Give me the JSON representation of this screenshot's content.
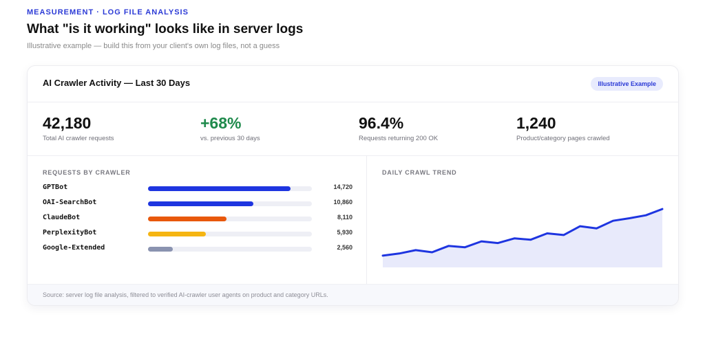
{
  "eyebrow": "MEASUREMENT · LOG FILE ANALYSIS",
  "title": "What \"is it working\" looks like in server logs",
  "subtitle": "Illustrative example — build this from your client's own log files, not a guess",
  "card": {
    "title": "AI Crawler Activity — Last 30 Days",
    "badge": "Illustrative Example",
    "stats": [
      {
        "value": "42,180",
        "label": "Total AI crawler requests"
      },
      {
        "value": "+68%",
        "label": "vs. previous 30 days"
      },
      {
        "value": "96.4%",
        "label": "Requests returning 200 OK"
      },
      {
        "value": "1,240",
        "label": "Product/category pages crawled"
      }
    ],
    "crawlers_heading": "REQUESTS BY CRAWLER",
    "crawlers": [
      {
        "name": "GPTBot",
        "value": 14720,
        "display": "14,720",
        "color": "#1e35e0"
      },
      {
        "name": "OAI-SearchBot",
        "value": 10860,
        "display": "10,860",
        "color": "#1e35e0"
      },
      {
        "name": "ClaudeBot",
        "value": 8110,
        "display": "8,110",
        "color": "#e8580c"
      },
      {
        "name": "PerplexityBot",
        "value": 5930,
        "display": "5,930",
        "color": "#f5b512"
      },
      {
        "name": "Google-Extended",
        "value": 2560,
        "display": "2,560",
        "color": "#8a93b0"
      }
    ],
    "crawler_scale_max": 16900,
    "trend_heading": "DAILY CRAWL TREND",
    "footer": "Source: server log file analysis, filtered to verified AI-crawler user agents on product and category URLs."
  },
  "chart_data": {
    "type": "area",
    "x": [
      1,
      2,
      3,
      4,
      5,
      6,
      7,
      8,
      9,
      10,
      11,
      12,
      13,
      14,
      15,
      16,
      17,
      18
    ],
    "values": [
      28,
      33,
      41,
      36,
      51,
      48,
      62,
      58,
      69,
      66,
      81,
      77,
      98,
      93,
      111,
      117,
      124,
      139
    ],
    "ylim": [
      0,
      180
    ],
    "line_color": "#1e35e0",
    "fill_color": "#e8eafb",
    "grid": false
  }
}
